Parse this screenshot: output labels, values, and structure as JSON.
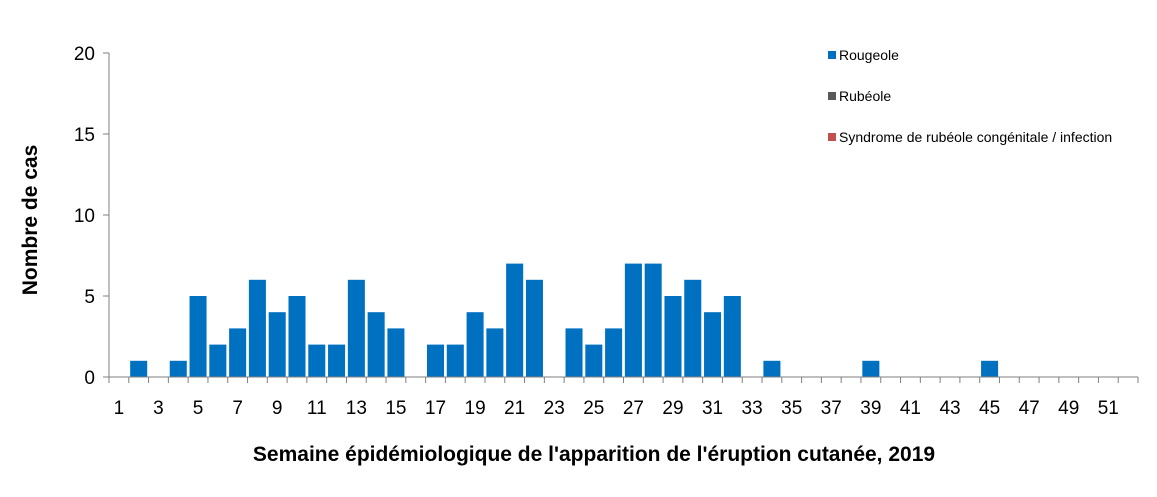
{
  "chart_data": {
    "type": "bar",
    "title": "",
    "xlabel": "Semaine épidémiologique de l'apparition de l'éruption cutanée, 2019",
    "ylabel": "Nombre de cas",
    "ylim": [
      0,
      20
    ],
    "yticks": [
      0,
      5,
      10,
      15,
      20
    ],
    "x": [
      1,
      2,
      3,
      4,
      5,
      6,
      7,
      8,
      9,
      10,
      11,
      12,
      13,
      14,
      15,
      16,
      17,
      18,
      19,
      20,
      21,
      22,
      23,
      24,
      25,
      26,
      27,
      28,
      29,
      30,
      31,
      32,
      33,
      34,
      35,
      36,
      37,
      38,
      39,
      40,
      41,
      42,
      43,
      44,
      45,
      46,
      47,
      48,
      49,
      50,
      51,
      52
    ],
    "xtick_labels": [
      1,
      3,
      5,
      7,
      9,
      11,
      13,
      15,
      17,
      19,
      21,
      23,
      25,
      27,
      29,
      31,
      33,
      35,
      37,
      39,
      41,
      43,
      45,
      47,
      49,
      51
    ],
    "grid": false,
    "legend_position": "top-right",
    "series": [
      {
        "name": "Rougeole",
        "color": "#0070C0",
        "values": [
          0,
          1,
          0,
          1,
          5,
          2,
          3,
          6,
          4,
          5,
          2,
          2,
          6,
          4,
          3,
          0,
          2,
          2,
          4,
          3,
          7,
          6,
          0,
          3,
          2,
          3,
          7,
          7,
          5,
          6,
          4,
          5,
          0,
          1,
          0,
          0,
          0,
          0,
          1,
          0,
          0,
          0,
          0,
          0,
          1,
          0,
          0,
          0,
          0,
          0,
          0,
          0
        ]
      },
      {
        "name": "Rubéole",
        "color": "#595959",
        "values": [
          0,
          0,
          0,
          0,
          0,
          0,
          0,
          0,
          0,
          0,
          0,
          0,
          0,
          0,
          0,
          0,
          0,
          0,
          0,
          0,
          0,
          0,
          0,
          0,
          0,
          0,
          0,
          0,
          0,
          0,
          0,
          0,
          0,
          0,
          0,
          0,
          0,
          0,
          0,
          0,
          0,
          0,
          0,
          0,
          0,
          0,
          0,
          0,
          0,
          0,
          0,
          0
        ]
      },
      {
        "name": "Syndrome de rubéole congénitale / infection",
        "color": "#C0504D",
        "values": [
          0,
          0,
          0,
          0,
          0,
          0,
          0,
          0,
          0,
          0,
          0,
          0,
          0,
          0,
          0,
          0,
          0,
          0,
          0,
          0,
          0,
          0,
          0,
          0,
          0,
          0,
          0,
          0,
          0,
          0,
          0,
          0,
          0,
          0,
          0,
          0,
          0,
          0,
          0,
          0,
          0,
          0,
          0,
          0,
          0,
          0,
          0,
          0,
          0,
          0,
          0,
          0
        ]
      }
    ]
  }
}
